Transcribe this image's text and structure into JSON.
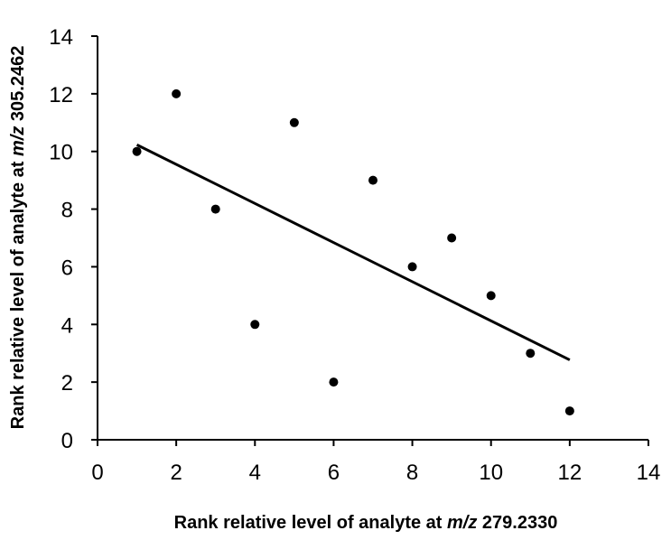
{
  "chart_data": {
    "type": "scatter",
    "xlabel": {
      "prefix": "Rank relative level of analyte at ",
      "italic": "m/z",
      "suffix": " 279.2330"
    },
    "ylabel": {
      "prefix": "Rank relative level of analyte at ",
      "italic": "m/z",
      "suffix": " 305.2462"
    },
    "xlim": [
      0,
      14
    ],
    "ylim": [
      0,
      14
    ],
    "xticks": [
      0,
      2,
      4,
      6,
      8,
      10,
      12,
      14
    ],
    "yticks": [
      0,
      2,
      4,
      6,
      8,
      10,
      12,
      14
    ],
    "grid": false,
    "legend": "none",
    "marker_color": "#000000",
    "series": [
      {
        "points": [
          {
            "x": 1,
            "y": 10
          },
          {
            "x": 2,
            "y": 12
          },
          {
            "x": 3,
            "y": 8
          },
          {
            "x": 4,
            "y": 4
          },
          {
            "x": 5,
            "y": 11
          },
          {
            "x": 6,
            "y": 2
          },
          {
            "x": 7,
            "y": 9
          },
          {
            "x": 8,
            "y": 6
          },
          {
            "x": 9,
            "y": 7
          },
          {
            "x": 10,
            "y": 5
          },
          {
            "x": 11,
            "y": 3
          },
          {
            "x": 12,
            "y": 1
          }
        ]
      }
    ],
    "trendline": {
      "type": "linear",
      "x_range": [
        1,
        12
      ],
      "color": "#000000"
    }
  }
}
